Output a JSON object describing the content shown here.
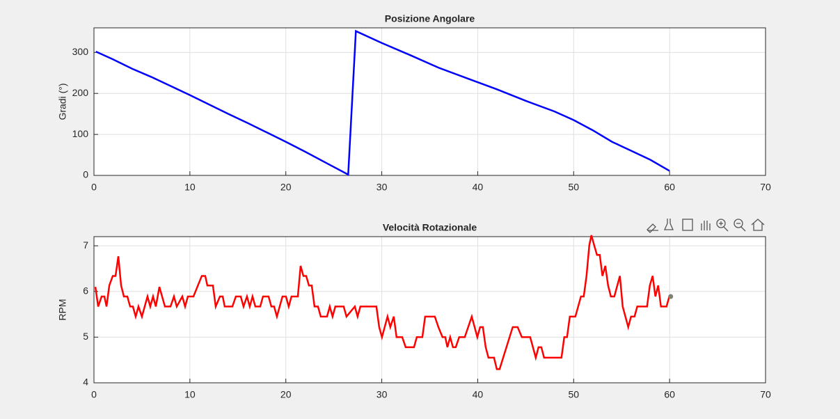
{
  "chart_data": [
    {
      "type": "line",
      "title": "Posizione Angolare",
      "ylabel": "Gradi (°)",
      "series": [
        {
          "color": "#0000ff",
          "x": [
            0.2,
            2,
            4,
            6,
            8,
            10,
            12,
            14,
            16,
            18,
            20,
            22,
            24,
            26.5,
            27.3,
            30,
            33,
            36,
            39,
            42,
            45,
            48,
            50,
            52,
            54,
            56,
            58,
            60
          ],
          "values": [
            302,
            283,
            260,
            240,
            218,
            196,
            173,
            150,
            128,
            105,
            82,
            58,
            33,
            2,
            352,
            323,
            293,
            262,
            236,
            210,
            182,
            156,
            135,
            110,
            82,
            60,
            38,
            11
          ]
        }
      ],
      "xlim": [
        0,
        70
      ],
      "xticks": [
        0,
        10,
        20,
        30,
        40,
        50,
        60,
        70
      ],
      "ylim": [
        0,
        360
      ],
      "yticks": [
        0,
        100,
        200,
        300
      ],
      "grid": true
    },
    {
      "type": "line",
      "title": "Velocità Rotazionale",
      "ylabel": "RPM",
      "series": [
        {
          "color": "#ff0000",
          "marker_color": "#808070",
          "x": [
            0.15,
            0.44,
            0.8,
            1.09,
            1.31,
            1.6,
            1.96,
            2.25,
            2.54,
            2.83,
            3.12,
            3.48,
            3.77,
            4.06,
            4.35,
            4.64,
            5.0,
            5.58,
            5.87,
            6.16,
            6.45,
            6.82,
            7.4,
            7.98,
            8.34,
            8.63,
            9.21,
            9.5,
            9.79,
            10.37,
            11.24,
            11.6,
            11.82,
            12.4,
            12.69,
            13.13,
            13.42,
            13.63,
            14.43,
            14.79,
            15.3,
            15.59,
            15.95,
            16.24,
            16.53,
            16.82,
            17.33,
            17.62,
            18.2,
            18.49,
            18.78,
            19.07,
            19.65,
            20.01,
            20.3,
            20.59,
            21.25,
            21.54,
            21.83,
            22.12,
            22.41,
            22.7,
            22.99,
            23.35,
            23.64,
            24.29,
            24.58,
            24.87,
            25.16,
            26.03,
            26.32,
            27.19,
            27.48,
            27.77,
            28.06,
            29.44,
            29.73,
            30.02,
            30.6,
            30.89,
            31.25,
            31.54,
            32.13,
            32.49,
            33.36,
            33.65,
            34.23,
            34.52,
            35.53,
            35.9,
            36.33,
            36.62,
            36.84,
            37.13,
            37.42,
            37.71,
            38.07,
            38.65,
            39.38,
            39.96,
            40.25,
            40.54,
            40.83,
            41.12,
            41.7,
            41.99,
            42.28,
            43.65,
            44.16,
            44.6,
            45.47,
            46.05,
            46.34,
            46.63,
            46.92,
            48.73,
            49.02,
            49.31,
            49.6,
            50.18,
            50.76,
            51.05,
            51.34,
            51.63,
            51.85,
            52.14,
            52.43,
            52.72,
            53.0,
            53.3,
            53.59,
            53.88,
            54.24,
            54.82,
            55.11,
            55.69,
            55.98,
            56.34,
            56.63,
            57.65,
            57.94,
            58.23,
            58.52,
            58.81,
            59.1,
            59.68,
            59.97
          ],
          "values": [
            6.1,
            5.67,
            5.89,
            5.89,
            5.67,
            6.13,
            6.34,
            6.34,
            6.77,
            6.13,
            5.89,
            5.89,
            5.67,
            5.67,
            5.45,
            5.67,
            5.45,
            5.89,
            5.67,
            5.89,
            5.67,
            6.1,
            5.67,
            5.67,
            5.89,
            5.67,
            5.89,
            5.67,
            5.89,
            5.89,
            6.34,
            6.34,
            6.13,
            6.13,
            5.67,
            5.89,
            5.89,
            5.67,
            5.67,
            5.89,
            5.89,
            5.67,
            5.89,
            5.67,
            5.89,
            5.67,
            5.67,
            5.89,
            5.89,
            5.67,
            5.67,
            5.45,
            5.89,
            5.89,
            5.67,
            5.89,
            5.89,
            6.56,
            6.34,
            6.34,
            6.13,
            6.13,
            5.67,
            5.67,
            5.45,
            5.45,
            5.67,
            5.45,
            5.67,
            5.67,
            5.45,
            5.67,
            5.45,
            5.67,
            5.67,
            5.67,
            5.22,
            5.0,
            5.45,
            5.22,
            5.45,
            5.0,
            5.0,
            4.78,
            4.78,
            5.0,
            5.0,
            5.45,
            5.45,
            5.22,
            5.0,
            5.0,
            4.78,
            5.0,
            4.78,
            4.78,
            5.0,
            5.0,
            5.45,
            5.0,
            5.22,
            5.22,
            4.78,
            4.55,
            4.55,
            4.3,
            4.3,
            5.22,
            5.22,
            5.0,
            5.0,
            4.55,
            4.78,
            4.78,
            4.55,
            4.55,
            5.0,
            5.0,
            5.45,
            5.45,
            5.89,
            5.89,
            6.34,
            7.01,
            7.23,
            7.01,
            6.8,
            6.8,
            6.34,
            6.56,
            6.13,
            5.89,
            5.89,
            6.34,
            5.67,
            5.22,
            5.45,
            5.45,
            5.67,
            5.67,
            6.13,
            6.34,
            5.89,
            6.13,
            5.67,
            5.67,
            5.89
          ]
        }
      ],
      "xlim": [
        0,
        70
      ],
      "xticks": [
        0,
        10,
        20,
        30,
        40,
        50,
        60,
        70
      ],
      "ylim": [
        4,
        7.2
      ],
      "yticks": [
        4,
        5,
        6,
        7
      ],
      "grid": true
    }
  ]
}
